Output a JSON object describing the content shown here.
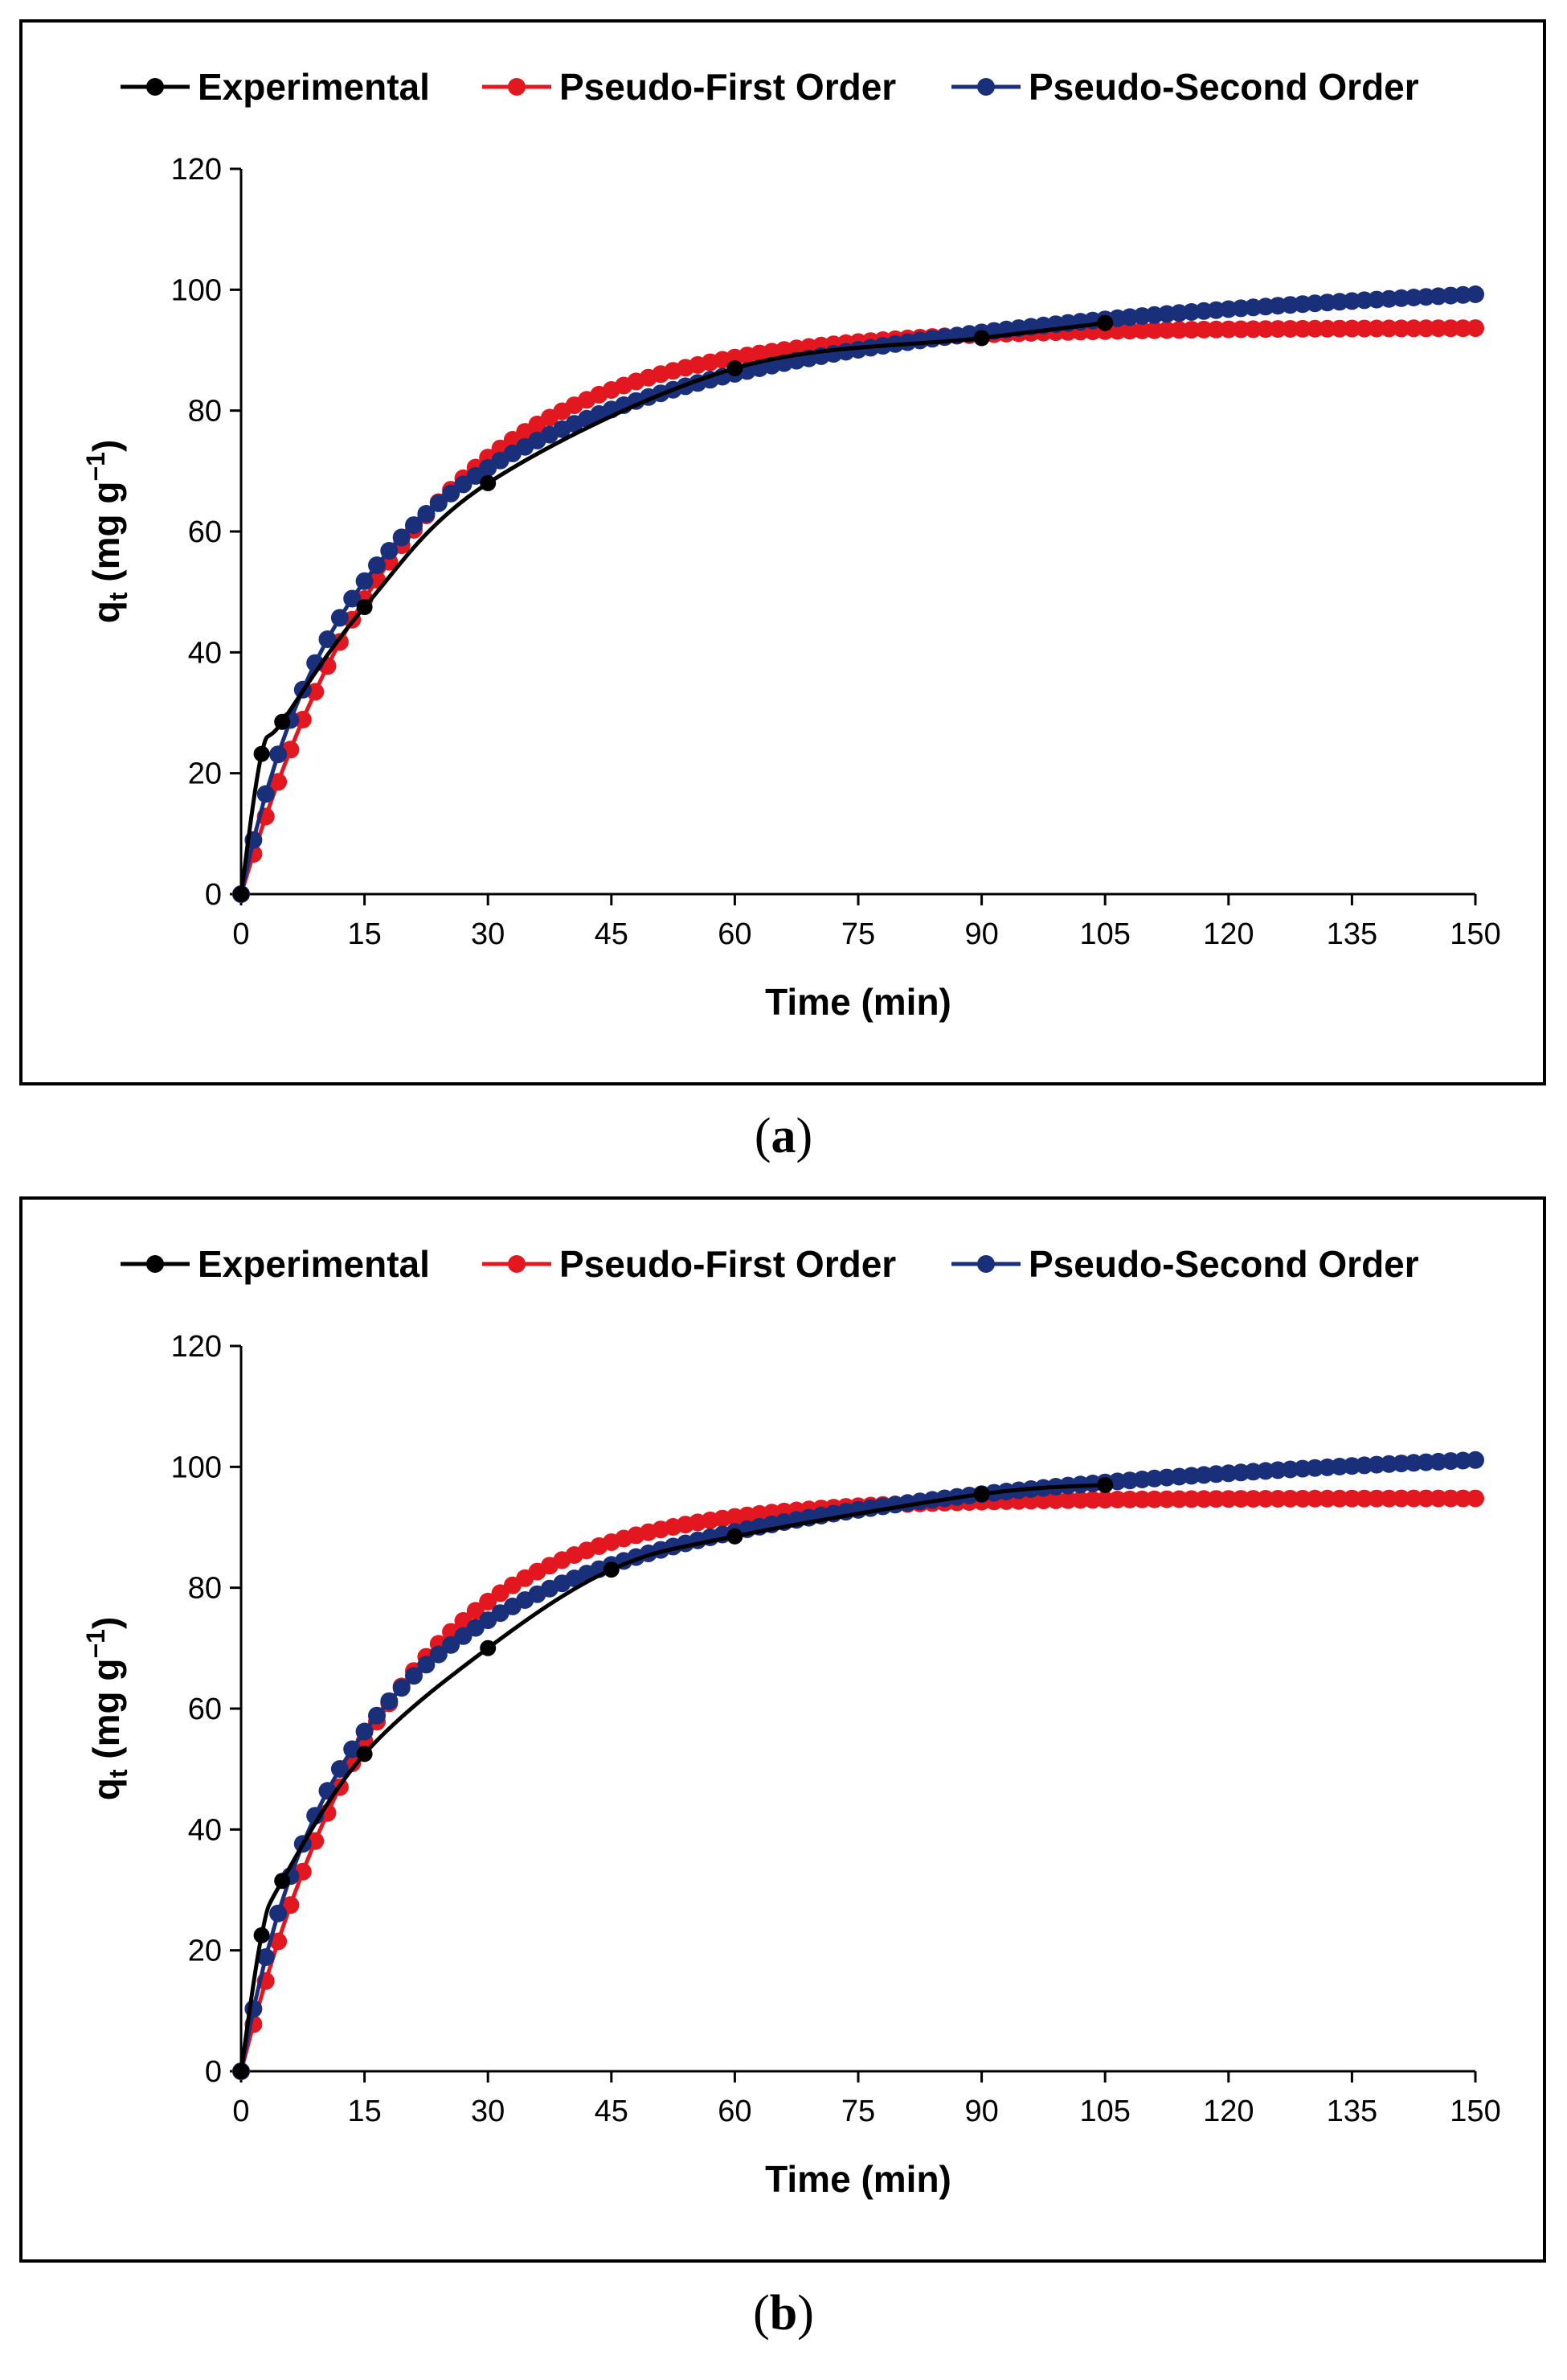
{
  "chart_data": [
    {
      "type": "line",
      "panel": "a",
      "xlabel": "Time (min)",
      "ylabel_main": "q",
      "ylabel_sub": "t",
      "ylabel_unit": "(mg g",
      "ylabel_sup": "−1",
      "ylabel_close": ")",
      "xlim": [
        0,
        150
      ],
      "ylim": [
        0,
        120
      ],
      "xticks": [
        0,
        15,
        30,
        45,
        60,
        75,
        90,
        105,
        120,
        135,
        150
      ],
      "yticks": [
        0,
        20,
        40,
        60,
        80,
        100,
        120
      ],
      "legend_position": "top",
      "series": [
        {
          "name": "Experimental",
          "color": "#000000",
          "style": "smooth-line-markers",
          "x": [
            0,
            2.5,
            5,
            15,
            30,
            60,
            90,
            105
          ],
          "y": [
            0,
            23.2,
            28.5,
            47.5,
            68.0,
            87.0,
            92.0,
            94.5
          ]
        },
        {
          "name": "Pseudo-First Order",
          "color": "#e3171f",
          "model": "pfo",
          "qe": 93.7,
          "k": 0.0491,
          "step": 1.5
        },
        {
          "name": "Pseudo-Second Order",
          "color": "#1a2f7a",
          "model": "pso",
          "qe": 110.5,
          "k": 0.000532,
          "step": 1.5
        }
      ]
    },
    {
      "type": "line",
      "panel": "b",
      "xlabel": "Time (min)",
      "ylabel_main": "q",
      "ylabel_sub": "t",
      "ylabel_unit": "(mg g",
      "ylabel_sup": "−1",
      "ylabel_close": ")",
      "xlim": [
        0,
        150
      ],
      "ylim": [
        0,
        120
      ],
      "xticks": [
        0,
        15,
        30,
        45,
        60,
        75,
        90,
        105,
        120,
        135,
        150
      ],
      "yticks": [
        0,
        20,
        40,
        60,
        80,
        100,
        120
      ],
      "legend_position": "top",
      "series": [
        {
          "name": "Experimental",
          "color": "#000000",
          "style": "smooth-line-markers",
          "x": [
            0,
            2.5,
            5,
            15,
            30,
            45,
            60,
            90,
            105
          ],
          "y": [
            0,
            22.5,
            31.5,
            52.5,
            70.0,
            83.0,
            88.5,
            95.5,
            97.0
          ]
        },
        {
          "name": "Pseudo-First Order",
          "color": "#e3171f",
          "model": "pfo",
          "qe": 94.8,
          "k": 0.0571,
          "step": 1.5
        },
        {
          "name": "Pseudo-Second Order",
          "color": "#1a2f7a",
          "model": "pso",
          "qe": 111.0,
          "k": 0.000616,
          "step": 1.5
        }
      ]
    }
  ],
  "captions": [
    {
      "open": "(",
      "letter": "a",
      "close": ")"
    },
    {
      "open": "(",
      "letter": "b",
      "close": ")"
    }
  ]
}
